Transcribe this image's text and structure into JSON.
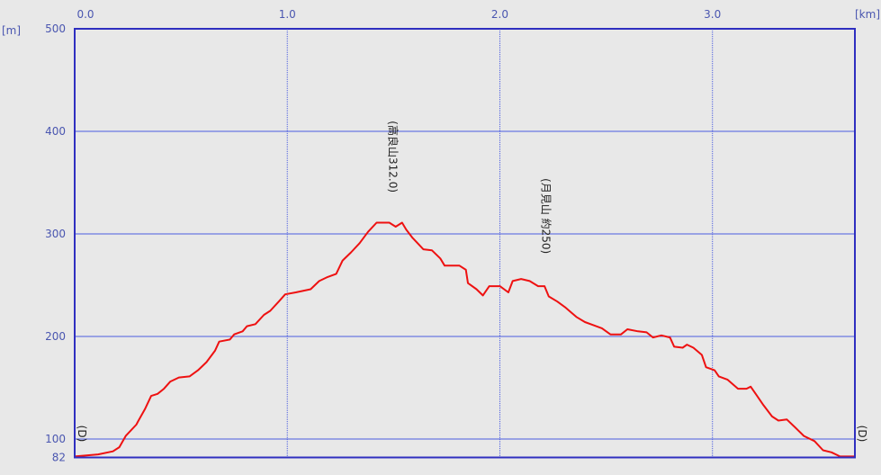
{
  "chart_data": {
    "type": "line",
    "title": "",
    "xlabel": "",
    "ylabel": "",
    "x_unit": "[km]",
    "y_unit": "[m]",
    "xlim": [
      0,
      3.67
    ],
    "ylim": [
      82,
      500
    ],
    "x_ticks": [
      "0.0",
      "1.0",
      "2.0",
      "3.0"
    ],
    "x_tick_values": [
      0,
      1,
      2,
      3
    ],
    "y_ticks": [
      "500",
      "400",
      "300",
      "200",
      "100",
      "82"
    ],
    "y_tick_values": [
      500,
      400,
      300,
      200,
      100,
      82
    ],
    "grid": true,
    "colors": {
      "line": "#ee1111",
      "grid": "#4a5ce0",
      "frame": "#2f2fc0",
      "tick_text": "#4a56b0",
      "background": "#e8e8e8"
    },
    "series": [
      {
        "x": [
          0.0,
          0.11,
          0.18,
          0.21,
          0.24,
          0.29,
          0.3,
          0.33,
          0.36,
          0.39,
          0.42,
          0.45,
          0.49,
          0.54,
          0.58,
          0.62,
          0.66,
          0.68,
          0.73,
          0.75,
          0.79,
          0.81,
          0.85,
          0.89,
          0.92,
          0.96,
          0.99,
          1.04,
          1.11,
          1.15,
          1.19,
          1.23,
          1.26,
          1.3,
          1.34,
          1.38,
          1.42,
          1.48,
          1.51,
          1.54,
          1.56,
          1.59,
          1.64,
          1.68,
          1.72,
          1.74,
          1.81,
          1.84,
          1.85,
          1.89,
          1.92,
          1.95,
          2.0,
          2.04,
          2.06,
          2.1,
          2.14,
          2.18,
          2.21,
          2.23,
          2.27,
          2.31,
          2.36,
          2.4,
          2.44,
          2.48,
          2.52,
          2.57,
          2.6,
          2.65,
          2.69,
          2.72,
          2.76,
          2.8,
          2.82,
          2.86,
          2.88,
          2.91,
          2.95,
          2.97,
          3.01,
          3.03,
          3.07,
          3.12,
          3.16,
          3.18,
          3.21,
          3.24,
          3.28,
          3.31,
          3.35,
          3.39,
          3.43,
          3.48,
          3.52,
          3.56,
          3.6,
          3.67
        ],
        "y": [
          83,
          85,
          88,
          92,
          103,
          114,
          118,
          129,
          142,
          144,
          149,
          156,
          160,
          161,
          167,
          175,
          186,
          195,
          197,
          202,
          205,
          210,
          212,
          221,
          225,
          234,
          241,
          243,
          246,
          254,
          258,
          261,
          274,
          282,
          291,
          302,
          311,
          311,
          307,
          311,
          304,
          296,
          285,
          284,
          276,
          269,
          269,
          265,
          252,
          246,
          240,
          249,
          249,
          243,
          254,
          256,
          254,
          249,
          249,
          239,
          234,
          228,
          219,
          214,
          211,
          208,
          202,
          202,
          207,
          205,
          204,
          199,
          201,
          199,
          190,
          189,
          192,
          189,
          182,
          170,
          167,
          161,
          158,
          149,
          149,
          151,
          142,
          133,
          122,
          118,
          119,
          111,
          103,
          98,
          89,
          87,
          83,
          83
        ]
      }
    ],
    "annotations": [
      {
        "text": "(高良山312.0)",
        "x": 1.5,
        "y": 312
      },
      {
        "text": "(月見山 約250)",
        "x": 2.22,
        "y": 256
      }
    ],
    "markers": [
      {
        "name": "start",
        "text": "(D)",
        "x": 0.0,
        "y": 100
      },
      {
        "name": "end",
        "text": "(D)",
        "x": 3.67,
        "y": 100
      }
    ]
  }
}
